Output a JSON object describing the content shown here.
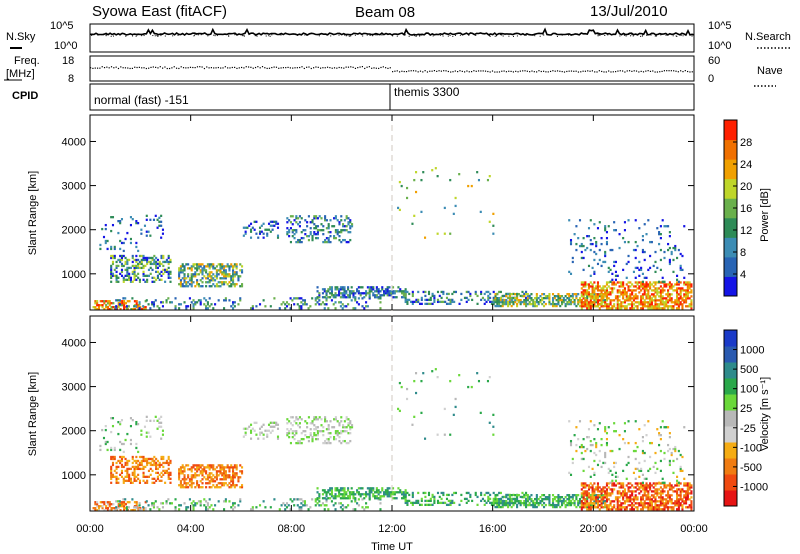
{
  "header": {
    "station": "Syowa East (fitACF)",
    "beam": "Beam 08",
    "date": "13/Jul/2010"
  },
  "top_panels": {
    "nsky_label": "N.Sky",
    "nsky_ticks": [
      "10^5",
      "10^0"
    ],
    "nsearch_label": "N.Search",
    "nsearch_ticks": [
      "10^5",
      "10^0"
    ],
    "freq_label": "Freq.",
    "freq_unit": "[MHz]",
    "freq_ticks": [
      "18",
      "8"
    ],
    "nave_label": "Nave",
    "nave_ticks": [
      "60",
      "0"
    ],
    "cpid_label": "CPID",
    "cpid_segments": [
      {
        "label": "normal (fast) -151",
        "start_h": 0,
        "end_h": 12
      },
      {
        "label": "themis 3300",
        "start_h": 12,
        "end_h": 24
      }
    ]
  },
  "colors": {
    "power_scale": [
      "#1414e6",
      "#2864b4",
      "#3c8cb4",
      "#2e8b57",
      "#6ab04c",
      "#bfd62a",
      "#f0a000",
      "#f07000",
      "#ff2000"
    ],
    "velocity_scale": [
      "#e61414",
      "#f04a10",
      "#f07c12",
      "#f5ac14",
      "#d0d0d0",
      "#b8b8b8",
      "#6ad83a",
      "#2aa84a",
      "#2e8b8b",
      "#2a5ab0",
      "#1a3ac8"
    ]
  },
  "chart_data": [
    {
      "type": "heatmap",
      "name": "power",
      "ylabel": "Slant Range [km]",
      "yticks": [
        "4000",
        "3000",
        "2000",
        "1000"
      ],
      "ylim": [
        180,
        4600
      ],
      "xlim": [
        0,
        24
      ],
      "colorbar_label": "Power [dB]",
      "colorbar_ticks": [
        "28",
        "24",
        "20",
        "16",
        "12",
        "8",
        "4"
      ],
      "crange": [
        0,
        32
      ]
    },
    {
      "type": "heatmap",
      "name": "velocity",
      "ylabel": "Slant Range [km]",
      "yticks": [
        "4000",
        "3000",
        "2000",
        "1000"
      ],
      "ylim": [
        180,
        4600
      ],
      "xlim": [
        0,
        24
      ],
      "xlabel": "Time UT",
      "xticks": [
        "00:00",
        "04:00",
        "08:00",
        "12:00",
        "16:00",
        "20:00",
        "00:00"
      ],
      "colorbar_label": "Velocity [m s⁻¹]",
      "colorbar_ticks": [
        "1000",
        "500",
        "100",
        "25",
        "-25",
        "-100",
        "-500",
        "-1000"
      ]
    }
  ]
}
